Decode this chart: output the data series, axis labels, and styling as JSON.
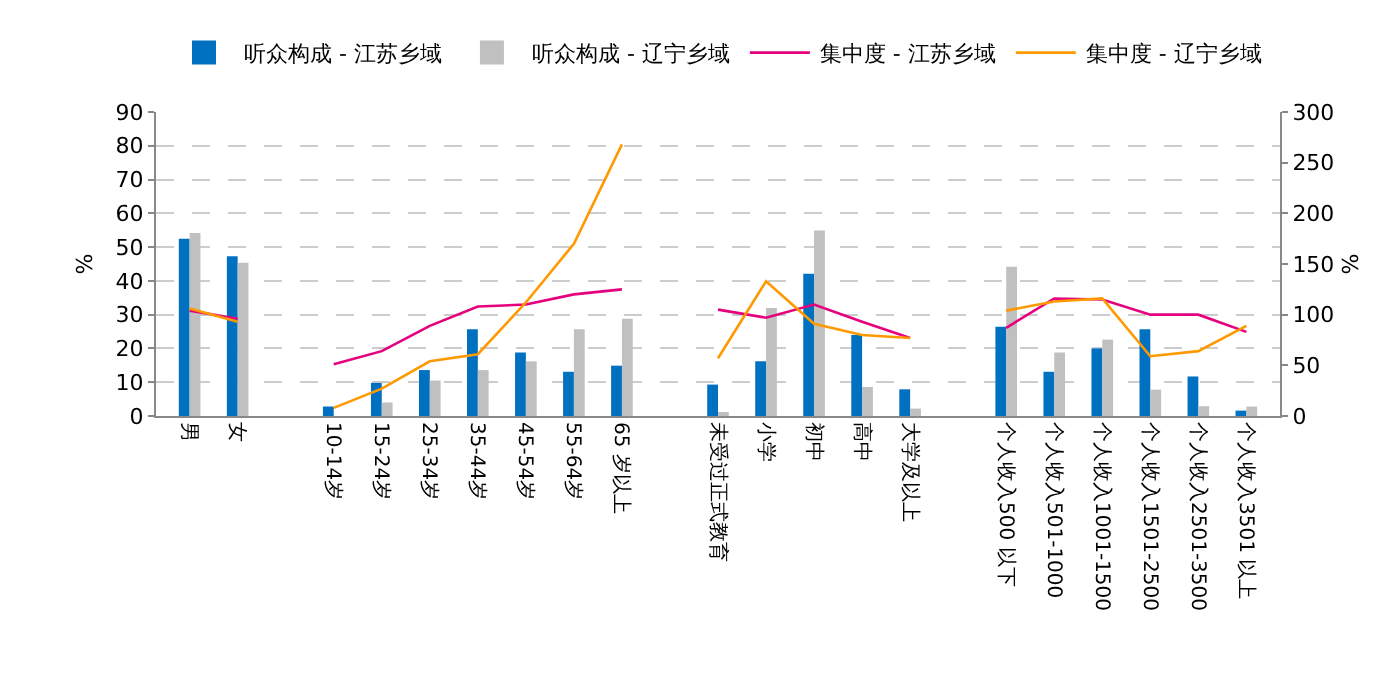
{
  "chart_data": {
    "type": "bar",
    "ylabel": "%",
    "y2label": "%",
    "categories": [
      "男",
      "女",
      null,
      "10-14岁",
      "15-24岁",
      "25-34岁",
      "35-44岁",
      "45-54岁",
      "55-64岁",
      "65 岁以上",
      null,
      "未受过正式教育",
      "小学",
      "初中",
      "高中",
      "大学及以上",
      null,
      "个人收入500 以下",
      "个人收入501-1000",
      "个人收入1001-1500",
      "个人收入1501-2500",
      "个人收入2501-3500",
      "个人收入3501 以上"
    ],
    "series": [
      {
        "name": "听众构成 - 江苏乡域",
        "color": "#0070c0",
        "values": [
          52.5,
          47.3,
          null,
          2.8,
          9.8,
          13.6,
          25.7,
          18.8,
          13.1,
          14.9,
          null,
          9.3,
          16.2,
          42.1,
          24,
          7.9,
          null,
          26.4,
          13.1,
          20,
          25.7,
          11.7,
          1.6
        ]
      },
      {
        "name": "听众构成 - 辽宁乡域",
        "color": "#c0c0c0",
        "values": [
          54.2,
          45.4,
          null,
          null,
          4,
          10.5,
          13.6,
          16.2,
          25.7,
          28.8,
          null,
          0.7,
          32,
          54.9,
          8.6,
          2.2,
          null,
          44.2,
          18.8,
          22.6,
          7.8,
          2.9,
          2.8
        ]
      },
      {
        "name": "集中度 - 江苏乡域",
        "type": "line",
        "axis": "y2",
        "color": "#e6007e",
        "values": [
          104,
          96,
          null,
          51,
          64,
          89,
          108,
          110,
          120,
          125,
          null,
          105,
          97,
          110,
          93,
          77,
          null,
          87,
          116,
          115,
          100,
          100,
          83
        ]
      },
      {
        "name": "集中度 - 辽宁乡域",
        "type": "line",
        "axis": "y2",
        "color": "#ff9900",
        "values": [
          106,
          93,
          null,
          8,
          27,
          54,
          61,
          112,
          170,
          268,
          null,
          57,
          133,
          91,
          80,
          77,
          null,
          104,
          113,
          116,
          59,
          64,
          89
        ]
      }
    ],
    "ylim": [
      0,
      90
    ],
    "yticks": [
      0,
      10,
      20,
      30,
      40,
      50,
      60,
      70,
      80,
      90
    ],
    "y2lim": [
      0,
      300
    ],
    "y2ticks": [
      0,
      50,
      100,
      150,
      200,
      250,
      300
    ],
    "grid": "y",
    "legend": "top",
    "marker": "none",
    "line_style": "solid"
  }
}
